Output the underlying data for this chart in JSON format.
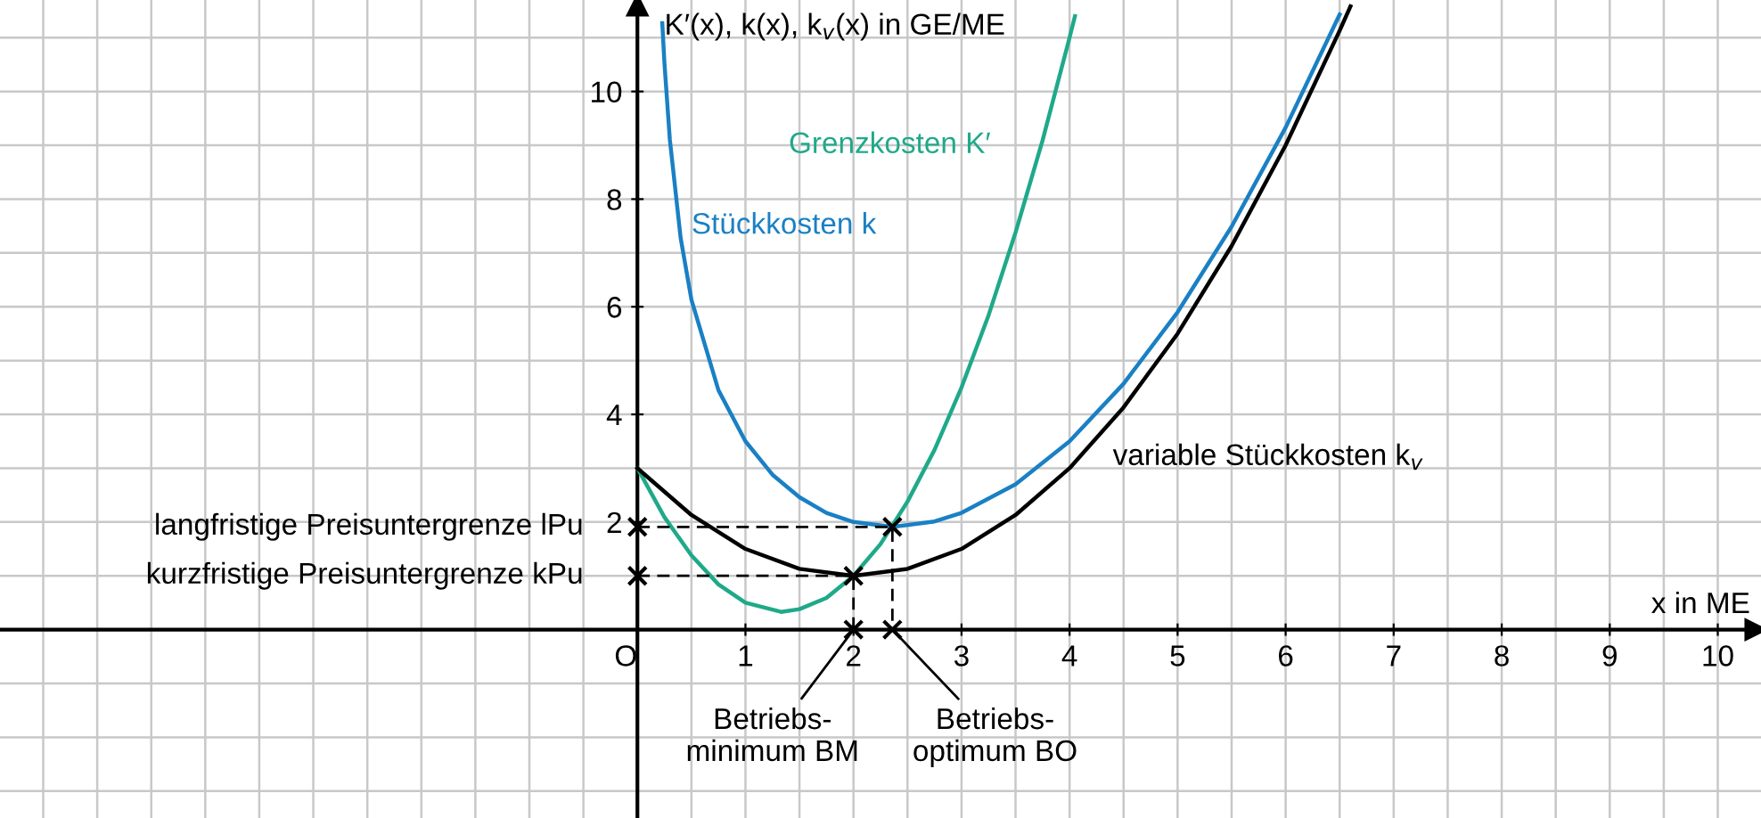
{
  "chart_data": {
    "type": "line",
    "xlabel": "x in ME",
    "ylabel": "K′(x), k(x), k$_{v}$(x) in GE/ME",
    "xlim": [
      -5.9,
      10.4
    ],
    "ylim": [
      -3.5,
      11.7
    ],
    "xticks": [
      {
        "value": 0,
        "label": "O"
      },
      1,
      2,
      3,
      4,
      5,
      6,
      7,
      8,
      9,
      10
    ],
    "yticks": [
      2,
      4,
      6,
      8,
      10
    ],
    "grid": true,
    "series": [
      {
        "name": "Grenzkosten K′",
        "color": "#1fa98a",
        "x": [
          0,
          0.25,
          0.5,
          0.75,
          1,
          1.33,
          1.5,
          1.75,
          2,
          2.25,
          2.5,
          2.75,
          3,
          3.25,
          3.5,
          3.75,
          4,
          4.05
        ],
        "values": [
          3,
          2.09,
          1.38,
          0.84,
          0.5,
          0.33,
          0.38,
          0.59,
          1,
          1.59,
          2.38,
          3.34,
          4.5,
          5.84,
          7.38,
          9.09,
          11,
          11.4
        ]
      },
      {
        "name": "Stückkosten k",
        "color": "#1a80c4",
        "x": [
          0.23,
          0.25,
          0.3,
          0.4,
          0.5,
          0.75,
          1,
          1.25,
          1.5,
          1.75,
          2,
          2.36,
          2.75,
          3,
          3.5,
          4,
          4.5,
          5,
          5.5,
          6,
          6.5
        ],
        "values": [
          11.27,
          10.53,
          9.11,
          7.28,
          6.13,
          4.45,
          3.5,
          2.88,
          2.46,
          2.17,
          2,
          1.91,
          2.01,
          2.17,
          2.7,
          3.5,
          4.57,
          5.9,
          7.49,
          9.33,
          11.43
        ]
      },
      {
        "name": "variable Stückkosten k$_{v}$",
        "color": "#000000",
        "x": [
          0,
          0.5,
          1,
          1.5,
          2,
          2.5,
          3,
          3.5,
          4,
          4.5,
          5,
          5.5,
          6,
          6.5,
          6.6
        ],
        "values": [
          3,
          2.13,
          1.5,
          1.13,
          1,
          1.13,
          1.5,
          2.13,
          3,
          4.13,
          5.5,
          7.13,
          9,
          11.13,
          11.58
        ]
      },
      {
        "color": "#000000",
        "line_style": "dashed",
        "marker": "cross",
        "x": [
          0,
          2,
          2
        ],
        "values": [
          1,
          1,
          0
        ]
      },
      {
        "color": "#000000",
        "line_style": "dashed",
        "marker": "cross",
        "x": [
          0,
          2.36,
          2.36
        ],
        "values": [
          1.91,
          1.91,
          0
        ]
      }
    ],
    "annotations": [
      {
        "text": "langfristige Preisuntergrenze lPu",
        "x": 0,
        "y": 1.91
      },
      {
        "text": "kurzfristige Preisuntergrenze kPu",
        "x": 0,
        "y": 1
      },
      {
        "text": "Betriebs-\nminimum BM",
        "x": 2,
        "y": 0
      },
      {
        "text": "Betriebs-\noptimum BO",
        "x": 2.36,
        "y": 0
      }
    ]
  }
}
